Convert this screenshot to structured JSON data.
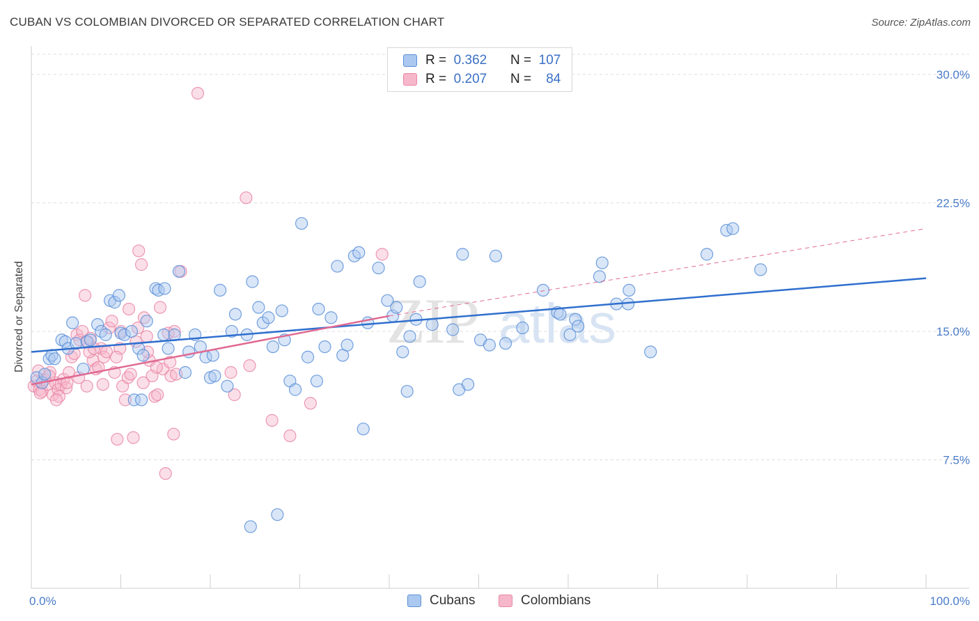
{
  "title": "CUBAN VS COLOMBIAN DIVORCED OR SEPARATED CORRELATION CHART",
  "source": "Source: ZipAtlas.com",
  "watermark": {
    "zip": "ZIP",
    "atlas": "atlas"
  },
  "legend": {
    "rows": [
      {
        "r_label": "R =",
        "r_value": "0.362",
        "n_label": "N =",
        "n_value": "107"
      },
      {
        "r_label": "R =",
        "r_value": "0.207",
        "n_label": "N =",
        "n_value": "84"
      }
    ]
  },
  "colors": {
    "cubans_fill": "#aac8f0",
    "cubans_stroke": "#5b8fd8",
    "cubans_line": "#2f6fce",
    "colombians_fill": "#f6b7cb",
    "colombians_stroke": "#e987a6",
    "colombians_line": "#e06a92",
    "tick_label": "#4a7cc9",
    "grid": "#dddddd"
  },
  "chart_data": {
    "type": "scatter",
    "title": "CUBAN VS COLOMBIAN DIVORCED OR SEPARATED CORRELATION CHART",
    "xlabel": "",
    "ylabel": "Divorced or Separated",
    "xlim": [
      0,
      100
    ],
    "ylim": [
      0,
      31.5
    ],
    "x_tick_labels": [
      "0.0%",
      "100.0%"
    ],
    "y_ticks": [
      7.5,
      15.0,
      22.5,
      30.0
    ],
    "y_tick_labels": [
      "7.5%",
      "15.0%",
      "22.5%",
      "30.0%"
    ],
    "grid": true,
    "legend_position": "top-center",
    "series": [
      {
        "name": "Cubans",
        "trend": {
          "x": [
            0,
            100
          ],
          "y": [
            13.8,
            18.1
          ]
        },
        "points": [
          [
            0.6,
            12.3
          ],
          [
            1.2,
            12.0
          ],
          [
            1.5,
            12.5
          ],
          [
            2.0,
            13.4
          ],
          [
            2.3,
            13.6
          ],
          [
            2.6,
            13.4
          ],
          [
            3.4,
            14.5
          ],
          [
            3.8,
            14.4
          ],
          [
            4.1,
            14.0
          ],
          [
            4.6,
            15.5
          ],
          [
            5.0,
            14.3
          ],
          [
            5.8,
            12.8
          ],
          [
            6.2,
            14.4
          ],
          [
            6.6,
            14.5
          ],
          [
            7.4,
            15.4
          ],
          [
            7.8,
            15.0
          ],
          [
            8.3,
            14.8
          ],
          [
            8.8,
            16.8
          ],
          [
            9.3,
            16.7
          ],
          [
            9.8,
            17.1
          ],
          [
            10.0,
            14.9
          ],
          [
            10.4,
            14.8
          ],
          [
            11.2,
            15.0
          ],
          [
            11.5,
            11.0
          ],
          [
            12.0,
            14.0
          ],
          [
            12.5,
            13.6
          ],
          [
            12.9,
            15.6
          ],
          [
            13.9,
            17.5
          ],
          [
            14.2,
            17.4
          ],
          [
            14.8,
            14.8
          ],
          [
            15.3,
            14.0
          ],
          [
            16.0,
            14.8
          ],
          [
            16.5,
            18.5
          ],
          [
            17.2,
            12.6
          ],
          [
            17.6,
            13.8
          ],
          [
            18.3,
            14.8
          ],
          [
            18.9,
            14.1
          ],
          [
            19.5,
            13.5
          ],
          [
            20.0,
            12.3
          ],
          [
            20.3,
            13.6
          ],
          [
            21.1,
            17.4
          ],
          [
            21.9,
            11.8
          ],
          [
            22.4,
            15.0
          ],
          [
            22.8,
            16.0
          ],
          [
            24.1,
            14.8
          ],
          [
            24.7,
            17.9
          ],
          [
            25.4,
            16.4
          ],
          [
            25.9,
            15.5
          ],
          [
            26.5,
            15.8
          ],
          [
            27.0,
            14.1
          ],
          [
            27.5,
            4.3
          ],
          [
            28.0,
            16.2
          ],
          [
            28.3,
            14.5
          ],
          [
            28.9,
            12.1
          ],
          [
            29.5,
            11.6
          ],
          [
            30.2,
            21.3
          ],
          [
            30.9,
            13.5
          ],
          [
            31.9,
            12.1
          ],
          [
            32.1,
            16.3
          ],
          [
            32.8,
            14.1
          ],
          [
            33.5,
            15.8
          ],
          [
            34.2,
            18.8
          ],
          [
            34.8,
            13.6
          ],
          [
            35.3,
            14.2
          ],
          [
            36.1,
            19.4
          ],
          [
            36.6,
            19.6
          ],
          [
            37.1,
            9.3
          ],
          [
            37.6,
            15.5
          ],
          [
            38.8,
            18.7
          ],
          [
            39.8,
            16.8
          ],
          [
            40.4,
            15.9
          ],
          [
            40.8,
            16.4
          ],
          [
            41.5,
            13.8
          ],
          [
            42.0,
            11.5
          ],
          [
            42.3,
            14.7
          ],
          [
            43.0,
            15.7
          ],
          [
            43.4,
            17.9
          ],
          [
            44.8,
            15.4
          ],
          [
            47.1,
            15.1
          ],
          [
            47.8,
            11.6
          ],
          [
            48.2,
            19.5
          ],
          [
            48.8,
            11.9
          ],
          [
            50.2,
            14.5
          ],
          [
            51.2,
            14.2
          ],
          [
            51.9,
            19.4
          ],
          [
            53.0,
            14.3
          ],
          [
            54.9,
            15.2
          ],
          [
            57.2,
            17.4
          ],
          [
            58.8,
            16.1
          ],
          [
            59.1,
            16.0
          ],
          [
            60.8,
            15.7
          ],
          [
            61.1,
            15.3
          ],
          [
            60.2,
            14.8
          ],
          [
            63.5,
            18.2
          ],
          [
            63.8,
            19.0
          ],
          [
            65.4,
            16.6
          ],
          [
            66.7,
            16.6
          ],
          [
            66.8,
            17.4
          ],
          [
            69.2,
            13.8
          ],
          [
            75.5,
            19.5
          ],
          [
            77.7,
            20.9
          ],
          [
            78.4,
            21.0
          ],
          [
            81.5,
            18.6
          ],
          [
            12.3,
            11.0
          ],
          [
            14.9,
            17.5
          ],
          [
            24.5,
            3.6
          ],
          [
            20.5,
            12.4
          ]
        ]
      },
      {
        "name": "Colombians",
        "trend": {
          "x": [
            0,
            40
          ],
          "y": [
            11.9,
            15.9
          ]
        },
        "trend_dashed": {
          "x": [
            40,
            100
          ],
          "y": [
            15.9,
            21.0
          ]
        },
        "points": [
          [
            0.3,
            11.8
          ],
          [
            0.6,
            12.1
          ],
          [
            0.9,
            11.6
          ],
          [
            1.2,
            11.5
          ],
          [
            1.5,
            12.2
          ],
          [
            1.8,
            11.9
          ],
          [
            2.1,
            12.6
          ],
          [
            2.4,
            11.3
          ],
          [
            2.7,
            12.0
          ],
          [
            3.0,
            11.6
          ],
          [
            3.3,
            11.9
          ],
          [
            3.6,
            12.2
          ],
          [
            3.9,
            11.7
          ],
          [
            4.2,
            12.6
          ],
          [
            4.5,
            13.5
          ],
          [
            4.8,
            13.7
          ],
          [
            5.1,
            14.8
          ],
          [
            5.4,
            14.5
          ],
          [
            5.7,
            15.0
          ],
          [
            6.0,
            17.1
          ],
          [
            6.3,
            14.4
          ],
          [
            6.6,
            14.6
          ],
          [
            6.9,
            13.3
          ],
          [
            7.2,
            12.8
          ],
          [
            7.5,
            12.9
          ],
          [
            7.8,
            14.0
          ],
          [
            8.1,
            13.5
          ],
          [
            8.4,
            13.8
          ],
          [
            8.7,
            15.2
          ],
          [
            9.0,
            15.6
          ],
          [
            9.3,
            12.6
          ],
          [
            9.6,
            8.7
          ],
          [
            9.9,
            14.0
          ],
          [
            10.2,
            11.8
          ],
          [
            10.5,
            11.0
          ],
          [
            10.8,
            12.3
          ],
          [
            11.1,
            12.5
          ],
          [
            11.4,
            8.8
          ],
          [
            11.7,
            14.4
          ],
          [
            12.0,
            19.7
          ],
          [
            12.3,
            18.9
          ],
          [
            12.6,
            15.8
          ],
          [
            12.9,
            14.7
          ],
          [
            13.2,
            13.3
          ],
          [
            13.5,
            12.4
          ],
          [
            13.8,
            11.2
          ],
          [
            14.1,
            11.3
          ],
          [
            14.4,
            16.4
          ],
          [
            14.7,
            12.8
          ],
          [
            15.0,
            6.7
          ],
          [
            15.3,
            14.9
          ],
          [
            15.6,
            12.4
          ],
          [
            15.9,
            9.0
          ],
          [
            16.2,
            12.5
          ],
          [
            16.7,
            18.5
          ],
          [
            18.6,
            28.9
          ],
          [
            22.3,
            12.6
          ],
          [
            22.7,
            11.3
          ],
          [
            24.0,
            22.8
          ],
          [
            24.4,
            13.0
          ],
          [
            26.9,
            9.8
          ],
          [
            28.9,
            8.9
          ],
          [
            31.2,
            10.8
          ],
          [
            39.2,
            19.5
          ],
          [
            1.0,
            11.4
          ],
          [
            2.0,
            12.4
          ],
          [
            3.1,
            11.2
          ],
          [
            4.0,
            12.0
          ],
          [
            5.3,
            12.3
          ],
          [
            6.5,
            13.8
          ],
          [
            7.0,
            14.0
          ],
          [
            8.0,
            11.9
          ],
          [
            9.5,
            13.5
          ],
          [
            10.0,
            15.0
          ],
          [
            10.9,
            16.3
          ],
          [
            11.9,
            15.2
          ],
          [
            12.5,
            12.0
          ],
          [
            13.0,
            13.8
          ],
          [
            14.0,
            12.9
          ],
          [
            15.5,
            13.2
          ],
          [
            16.0,
            15.0
          ],
          [
            6.2,
            11.8
          ],
          [
            2.8,
            11.0
          ],
          [
            0.8,
            12.7
          ]
        ]
      }
    ]
  }
}
